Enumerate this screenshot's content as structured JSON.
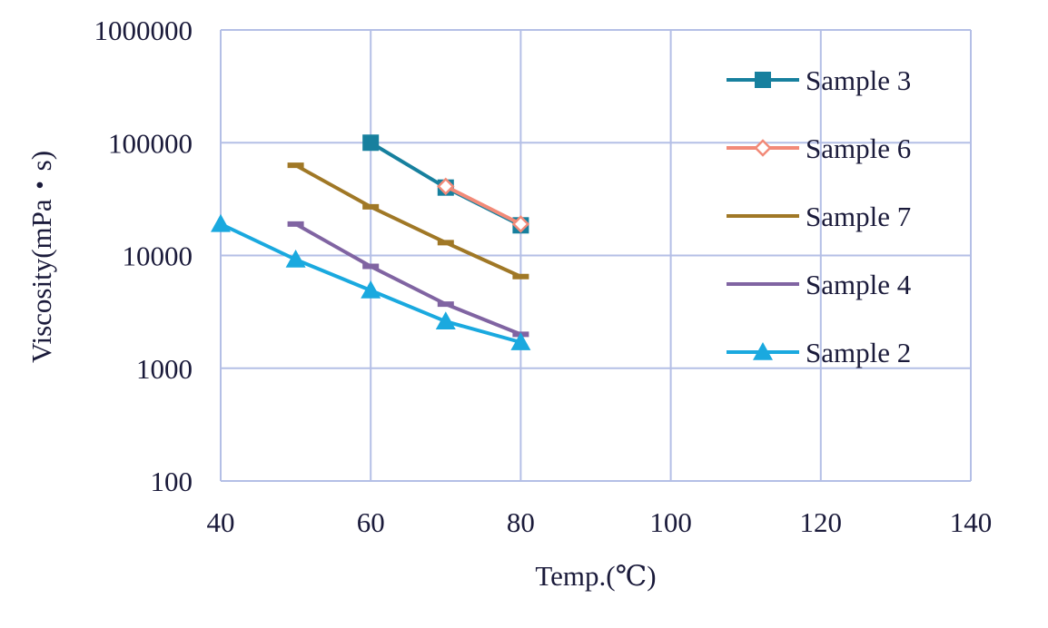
{
  "chart_data": {
    "type": "line",
    "title": "",
    "xlabel": "Temp.(℃)",
    "ylabel": "Viscosity(mPa・s)",
    "xlim": [
      40,
      140
    ],
    "ylim": [
      100,
      1000000
    ],
    "yscale": "log",
    "grid": true,
    "legend_position": "right",
    "x_ticks": [
      "40",
      "60",
      "80",
      "100",
      "120",
      "140"
    ],
    "y_ticks": [
      "100",
      "1000",
      "10000",
      "100000",
      "1000000"
    ],
    "series": [
      {
        "name": "Sample 3",
        "color": "#17809e",
        "marker": "square",
        "x": [
          60,
          70,
          80
        ],
        "y": [
          100000,
          40000,
          18500
        ]
      },
      {
        "name": "Sample 6",
        "color": "#f28a78",
        "marker": "diamond",
        "x": [
          70,
          80
        ],
        "y": [
          41000,
          19000
        ]
      },
      {
        "name": "Sample 7",
        "color": "#a07826",
        "marker": "dash",
        "x": [
          50,
          60,
          70,
          80
        ],
        "y": [
          63000,
          27000,
          13000,
          6500
        ]
      },
      {
        "name": "Sample 4",
        "color": "#8064a2",
        "marker": "dash",
        "x": [
          50,
          60,
          70,
          80
        ],
        "y": [
          19000,
          8000,
          3700,
          2000
        ]
      },
      {
        "name": "Sample 2",
        "color": "#1aa9df",
        "marker": "triangle",
        "x": [
          40,
          50,
          60,
          70,
          80
        ],
        "y": [
          19000,
          9200,
          4900,
          2600,
          1700
        ]
      }
    ]
  }
}
